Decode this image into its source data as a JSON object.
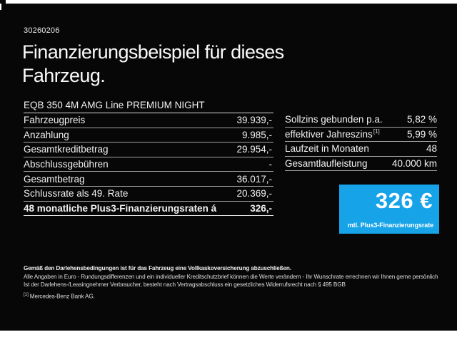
{
  "page": {
    "id_number": "30260206",
    "title_line1": "Finanzierungsbeispiel für dieses",
    "title_line2": "Fahrzeug.",
    "vehicle": "EQB 350 4M AMG Line PREMIUM NIGHT"
  },
  "left_table": {
    "rows": [
      {
        "label": "Fahrzeugpreis",
        "value": "39.939,-"
      },
      {
        "label": "Anzahlung",
        "value": "9.985,-"
      },
      {
        "label": "Gesamtkreditbetrag",
        "value": "29.954,-"
      },
      {
        "label": "Abschlussgebühren",
        "value": "-"
      },
      {
        "label": "Gesamtbetrag",
        "value": "36.017,-"
      },
      {
        "label": "Schlussrate als 49. Rate",
        "value": "20.369,-"
      },
      {
        "label": "48 monatliche Plus3-Finanzierungsraten á",
        "value": "326,-"
      }
    ]
  },
  "right_table": {
    "rows": [
      {
        "label": "Sollzins gebunden p.a.",
        "marker": "",
        "value": "5,82 %"
      },
      {
        "label": "effektiver Jahreszins",
        "marker": "[1]",
        "value": "5,99 %"
      },
      {
        "label": "Laufzeit in Monaten",
        "marker": "",
        "value": "48"
      },
      {
        "label": "Gesamtlaufleistung",
        "marker": "",
        "value": "40.000 km"
      }
    ]
  },
  "rate_box": {
    "amount": "326 €",
    "caption": "mtl. Plus3-Finanzierungsrate",
    "background_color": "#17a3e8"
  },
  "footnotes": {
    "bold_line": "Gemäß den Darlehensbedingungen ist für das Fahrzeug eine Vollkaskoversicherung abzuschließen.",
    "line2": "Alle Angaben in Euro - Rundungsdifferenzen und ein individueller Kreditschutzbrief können die Werte verändern - Ihr Wunschrate errechnen wir Ihnen gerne persönlich",
    "line3": "Ist der Darlehens-/Leasingnehmer Verbraucher, besteht nach Vertragsabschluss ein gesetzliches Widerrufsrecht nach § 495 BGB",
    "line4_marker": "[1]",
    "line4_text": "Mercedes-Benz Bank AG."
  }
}
